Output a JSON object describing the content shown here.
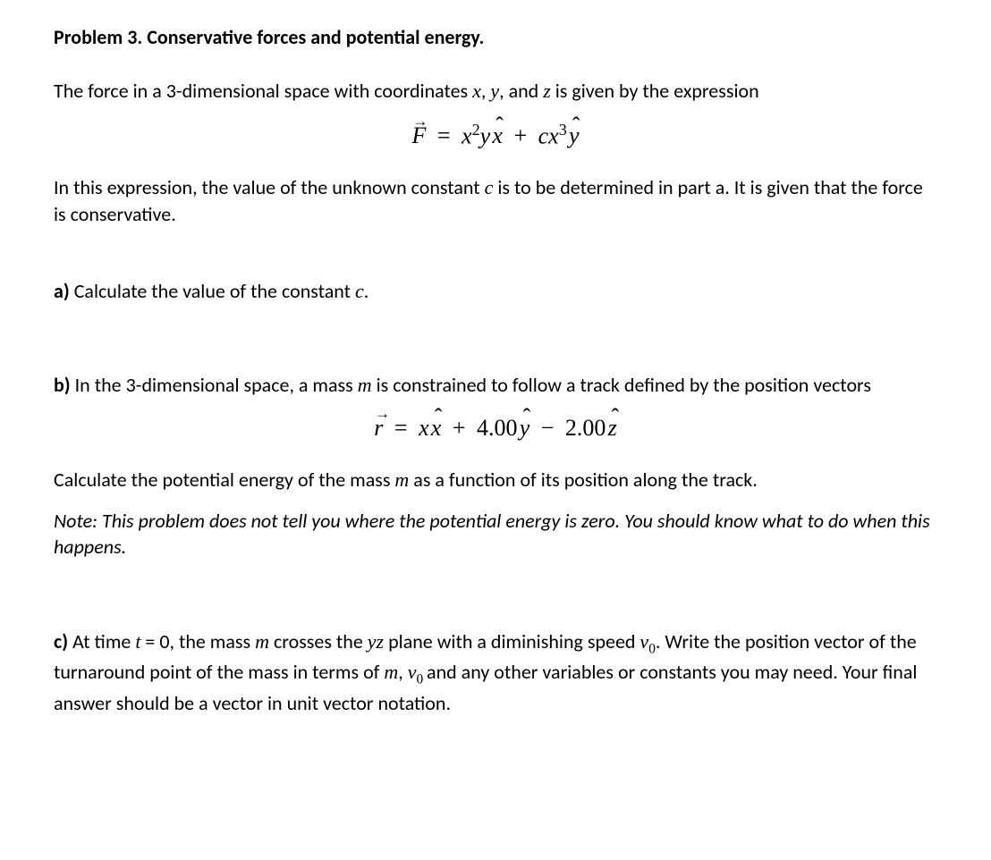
{
  "title": "Problem 3. Conservative forces and potential energy.",
  "intro_1": "The force in a 3-dimensional space with coordinates ",
  "intro_vars": {
    "x": "x",
    "y": "y",
    "z": "z"
  },
  "intro_2_a": ", ",
  "intro_2_b": ", and ",
  "intro_3": " is given by the expression",
  "eq1": {
    "F": "F",
    "eq": "=",
    "x": "x",
    "sq": "2",
    "y": "y",
    "xhat": "x",
    "plus": "+",
    "c": "c",
    "x2": "x",
    "cube": "3",
    "yhat": "y"
  },
  "after_eq1_a": "In this expression, the value of the unknown constant ",
  "after_eq1_var": "c",
  "after_eq1_b": " is to be determined in part a. It is given that the force is conservative.",
  "part_a": {
    "label": "a) ",
    "text_a": "Calculate the value of the constant ",
    "var": "c",
    "text_b": "."
  },
  "part_b": {
    "label": "b) ",
    "text_a": "In the 3-dimensional space, a mass ",
    "m": "m",
    "text_b": " is constrained to follow a track defined by the position vectors"
  },
  "eq2": {
    "r": "r",
    "eq": "=",
    "x": "x",
    "xhat": "x",
    "plus": "+",
    "four": "4.00",
    "yhat": "y",
    "minus": "−",
    "two": "2.00",
    "zhat": "z"
  },
  "part_b2_a": "Calculate the potential energy of the mass ",
  "part_b2_m": "m",
  "part_b2_b": " as a function of its position along the track.",
  "note": "Note: This problem does not tell you where the potential energy is zero. You should know what to do when this happens.",
  "part_c": {
    "label": "c) ",
    "t1": "At time ",
    "tvar": "t",
    "t2": " = 0, the mass ",
    "m": "m",
    "t3": " crosses the ",
    "yz": "yz",
    "t4": " plane with a diminishing speed ",
    "v0": "v",
    "v0sub": "0",
    "t5": ". Write the position vector of the turnaround point of the mass in terms of ",
    "m2": "m",
    "t6": ", ",
    "v02": "v",
    "v02sub": "0 ",
    "t7": "and any other variables or constants you may need. Your final answer should be a vector in unit vector notation."
  }
}
